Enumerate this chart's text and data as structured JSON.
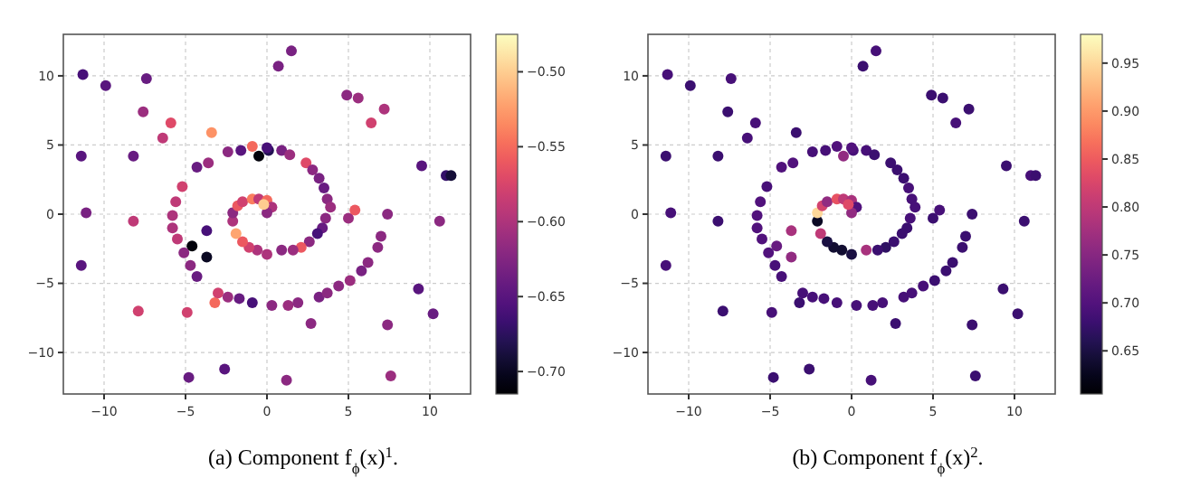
{
  "chart_data": [
    {
      "type": "scatter",
      "title": "(a) Component f$_{ϕ}$(x)$^{1}$.",
      "xlim": [
        -12.5,
        12.5
      ],
      "ylim": [
        -13,
        13
      ],
      "xticks": [
        -10,
        -5,
        0,
        5,
        10
      ],
      "yticks": [
        -10,
        -5,
        0,
        5,
        10
      ],
      "grid": true,
      "marker": "circle",
      "clim": [
        -0.715,
        -0.475
      ],
      "cticks": [
        {
          "value": -0.7,
          "label": "−0.70"
        },
        {
          "value": -0.65,
          "label": "−0.65"
        },
        {
          "value": -0.6,
          "label": "−0.60"
        },
        {
          "value": -0.55,
          "label": "−0.55"
        },
        {
          "value": -0.5,
          "label": "−0.50"
        }
      ],
      "x": [
        -11.3,
        -9.9,
        -7.4,
        -7.6,
        -5.9,
        -6.4,
        -3.4,
        -11.4,
        -8.2,
        -11.1,
        -8.2,
        -11.4,
        -4.6,
        -3.7,
        -3.7,
        -7.9,
        -4.9,
        -3.2,
        -4.8,
        -2.6,
        1.2,
        2.7,
        7.4,
        7.6,
        10.2,
        9.3,
        10.6,
        7.4,
        5.0,
        5.4,
        9.5,
        11.0,
        11.3,
        4.9,
        5.6,
        7.2,
        6.4,
        0.7,
        1.5,
        -2.4,
        -1.6,
        -0.9,
        -0.5,
        0.1,
        0.0,
        0.9,
        1.4,
        2.4,
        2.8,
        3.2,
        3.5,
        3.7,
        3.9,
        3.6,
        3.4,
        3.1,
        2.6,
        2.1,
        1.6,
        0.9,
        0.0,
        -0.6,
        -1.1,
        -1.5,
        -1.9,
        -2.1,
        -2.1,
        -1.8,
        -1.5,
        -0.9,
        -0.5,
        0.0,
        0.3,
        0.0,
        -0.2,
        -3.6,
        -4.3,
        -5.2,
        -5.6,
        -5.8,
        -5.8,
        -5.5,
        -5.1,
        -4.7,
        -4.3,
        -3.0,
        -2.4,
        -1.7,
        -0.9,
        0.3,
        1.3,
        1.9,
        3.2,
        3.7,
        4.4,
        5.1,
        5.8,
        6.2,
        6.8,
        7.0
      ],
      "values": [
        10.1,
        9.3,
        9.8,
        7.4,
        6.6,
        5.5,
        5.9,
        4.2,
        4.2,
        0.1,
        -0.5,
        -3.7,
        -2.3,
        -1.2,
        -3.1,
        -7.0,
        -7.1,
        -6.4,
        -11.8,
        -11.2,
        -12.0,
        -7.9,
        -8.0,
        -11.7,
        -7.2,
        -5.4,
        -0.5,
        0.0,
        -0.3,
        0.3,
        3.5,
        2.8,
        2.8,
        8.6,
        8.4,
        7.6,
        6.6,
        10.7,
        11.8,
        4.5,
        4.6,
        4.9,
        4.2,
        4.6,
        4.8,
        4.6,
        4.3,
        3.7,
        3.2,
        2.6,
        1.9,
        1.1,
        0.5,
        -0.3,
        -1.0,
        -1.4,
        -2.0,
        -2.4,
        -2.6,
        -2.6,
        -2.9,
        -2.6,
        -2.4,
        -2.0,
        -1.4,
        -0.5,
        0.1,
        0.6,
        0.9,
        1.1,
        1.1,
        1.0,
        0.5,
        0.1,
        0.7,
        3.7,
        3.4,
        2.0,
        0.9,
        -0.1,
        -1.0,
        -1.8,
        -2.8,
        -3.7,
        -4.5,
        -5.7,
        -6.0,
        -6.1,
        -6.4,
        -6.6,
        -6.6,
        -6.4,
        -6.0,
        -5.7,
        -5.2,
        -4.8,
        -4.1,
        -3.5,
        -2.4,
        -1.6
      ],
      "cvalues": [
        -0.66,
        -0.65,
        -0.64,
        -0.61,
        -0.57,
        -0.59,
        -0.53,
        -0.65,
        -0.64,
        -0.63,
        -0.59,
        -0.65,
        -0.71,
        -0.66,
        -0.7,
        -0.58,
        -0.58,
        -0.55,
        -0.64,
        -0.65,
        -0.62,
        -0.62,
        -0.62,
        -0.61,
        -0.64,
        -0.65,
        -0.62,
        -0.62,
        -0.61,
        -0.56,
        -0.65,
        -0.67,
        -0.69,
        -0.62,
        -0.61,
        -0.6,
        -0.58,
        -0.63,
        -0.63,
        -0.62,
        -0.65,
        -0.55,
        -0.71,
        -0.68,
        -0.66,
        -0.63,
        -0.61,
        -0.57,
        -0.62,
        -0.63,
        -0.64,
        -0.62,
        -0.61,
        -0.62,
        -0.64,
        -0.66,
        -0.62,
        -0.56,
        -0.61,
        -0.62,
        -0.6,
        -0.6,
        -0.58,
        -0.56,
        -0.52,
        -0.6,
        -0.62,
        -0.56,
        -0.58,
        -0.54,
        -0.59,
        -0.55,
        -0.6,
        -0.62,
        -0.5,
        -0.61,
        -0.64,
        -0.58,
        -0.59,
        -0.6,
        -0.6,
        -0.59,
        -0.62,
        -0.62,
        -0.64,
        -0.58,
        -0.61,
        -0.64,
        -0.66,
        -0.62,
        -0.61,
        -0.62,
        -0.63,
        -0.62,
        -0.62,
        -0.61,
        -0.63,
        -0.62,
        -0.62,
        -0.62
      ]
    },
    {
      "type": "scatter",
      "title": "(b) Component f$_{ϕ}$(x)$^{2}$.",
      "xlim": [
        -12.5,
        12.5
      ],
      "ylim": [
        -13,
        13
      ],
      "xticks": [
        -10,
        -5,
        0,
        5,
        10
      ],
      "yticks": [
        -10,
        -5,
        0,
        5,
        10
      ],
      "grid": true,
      "marker": "circle",
      "clim": [
        0.605,
        0.98
      ],
      "cticks": [
        0.65,
        {
          "value": 0.7,
          "label": "0.70"
        },
        0.75,
        {
          "value": 0.8,
          "label": "0.80"
        },
        0.85,
        {
          "value": 0.9,
          "label": "0.90"
        },
        0.95
      ],
      "x": [
        -11.3,
        -9.9,
        -7.4,
        -7.6,
        -5.9,
        -6.4,
        -3.4,
        -11.4,
        -8.2,
        -11.1,
        -8.2,
        -11.4,
        -4.6,
        -3.7,
        -3.7,
        -7.9,
        -4.9,
        -3.2,
        -4.8,
        -2.6,
        1.2,
        2.7,
        7.4,
        7.6,
        10.2,
        9.3,
        10.6,
        7.4,
        5.0,
        5.4,
        9.5,
        11.0,
        11.3,
        4.9,
        5.6,
        7.2,
        6.4,
        0.7,
        1.5,
        -2.4,
        -1.6,
        -0.9,
        -0.5,
        0.1,
        0.0,
        0.9,
        1.4,
        2.4,
        2.8,
        3.2,
        3.5,
        3.7,
        3.9,
        3.6,
        3.4,
        3.1,
        2.6,
        2.1,
        1.6,
        0.9,
        0.0,
        -0.6,
        -1.1,
        -1.5,
        -1.9,
        -2.1,
        -2.1,
        -1.8,
        -1.5,
        -0.9,
        -0.5,
        0.0,
        0.3,
        0.0,
        -0.2,
        -3.6,
        -4.3,
        -5.2,
        -5.6,
        -5.8,
        -5.8,
        -5.5,
        -5.1,
        -4.7,
        -4.3,
        -3.0,
        -2.4,
        -1.7,
        -0.9,
        0.3,
        1.3,
        1.9,
        3.2,
        3.7,
        4.4,
        5.1,
        5.8,
        6.2,
        6.8,
        7.0
      ],
      "values": [
        10.1,
        9.3,
        9.8,
        7.4,
        6.6,
        5.5,
        5.9,
        4.2,
        4.2,
        0.1,
        -0.5,
        -3.7,
        -2.3,
        -1.2,
        -3.1,
        -7.0,
        -7.1,
        -6.4,
        -11.8,
        -11.2,
        -12.0,
        -7.9,
        -8.0,
        -11.7,
        -7.2,
        -5.4,
        -0.5,
        0.0,
        -0.3,
        0.3,
        3.5,
        2.8,
        2.8,
        8.6,
        8.4,
        7.6,
        6.6,
        10.7,
        11.8,
        4.5,
        4.6,
        4.9,
        4.2,
        4.6,
        4.8,
        4.6,
        4.3,
        3.7,
        3.2,
        2.6,
        1.9,
        1.1,
        0.5,
        -0.3,
        -1.0,
        -1.4,
        -2.0,
        -2.4,
        -2.6,
        -2.6,
        -2.9,
        -2.6,
        -2.4,
        -2.0,
        -1.4,
        -0.5,
        0.1,
        0.6,
        0.9,
        1.1,
        1.1,
        1.0,
        0.5,
        0.1,
        0.7,
        3.7,
        3.4,
        2.0,
        0.9,
        -0.1,
        -1.0,
        -1.8,
        -2.8,
        -3.7,
        -4.5,
        -5.7,
        -6.0,
        -6.1,
        -6.4,
        -6.6,
        -6.6,
        -6.4,
        -6.0,
        -5.7,
        -5.2,
        -4.8,
        -4.1,
        -3.5,
        -2.4,
        -1.6
      ],
      "cvalues": [
        0.69,
        0.68,
        0.69,
        0.68,
        0.69,
        0.69,
        0.68,
        0.68,
        0.68,
        0.69,
        0.68,
        0.69,
        0.72,
        0.78,
        0.76,
        0.68,
        0.69,
        0.68,
        0.68,
        0.68,
        0.69,
        0.68,
        0.68,
        0.68,
        0.68,
        0.68,
        0.68,
        0.68,
        0.68,
        0.69,
        0.68,
        0.69,
        0.68,
        0.68,
        0.68,
        0.68,
        0.69,
        0.68,
        0.69,
        0.69,
        0.69,
        0.7,
        0.76,
        0.69,
        0.7,
        0.69,
        0.68,
        0.68,
        0.68,
        0.68,
        0.69,
        0.69,
        0.69,
        0.69,
        0.68,
        0.68,
        0.68,
        0.67,
        0.68,
        0.78,
        0.65,
        0.64,
        0.64,
        0.65,
        0.8,
        0.63,
        0.95,
        0.82,
        0.76,
        0.84,
        0.8,
        0.78,
        0.7,
        0.76,
        0.83,
        0.7,
        0.7,
        0.69,
        0.7,
        0.7,
        0.7,
        0.7,
        0.7,
        0.69,
        0.69,
        0.69,
        0.69,
        0.69,
        0.69,
        0.69,
        0.69,
        0.69,
        0.69,
        0.69,
        0.69,
        0.68,
        0.68,
        0.68,
        0.68,
        0.68
      ]
    }
  ]
}
